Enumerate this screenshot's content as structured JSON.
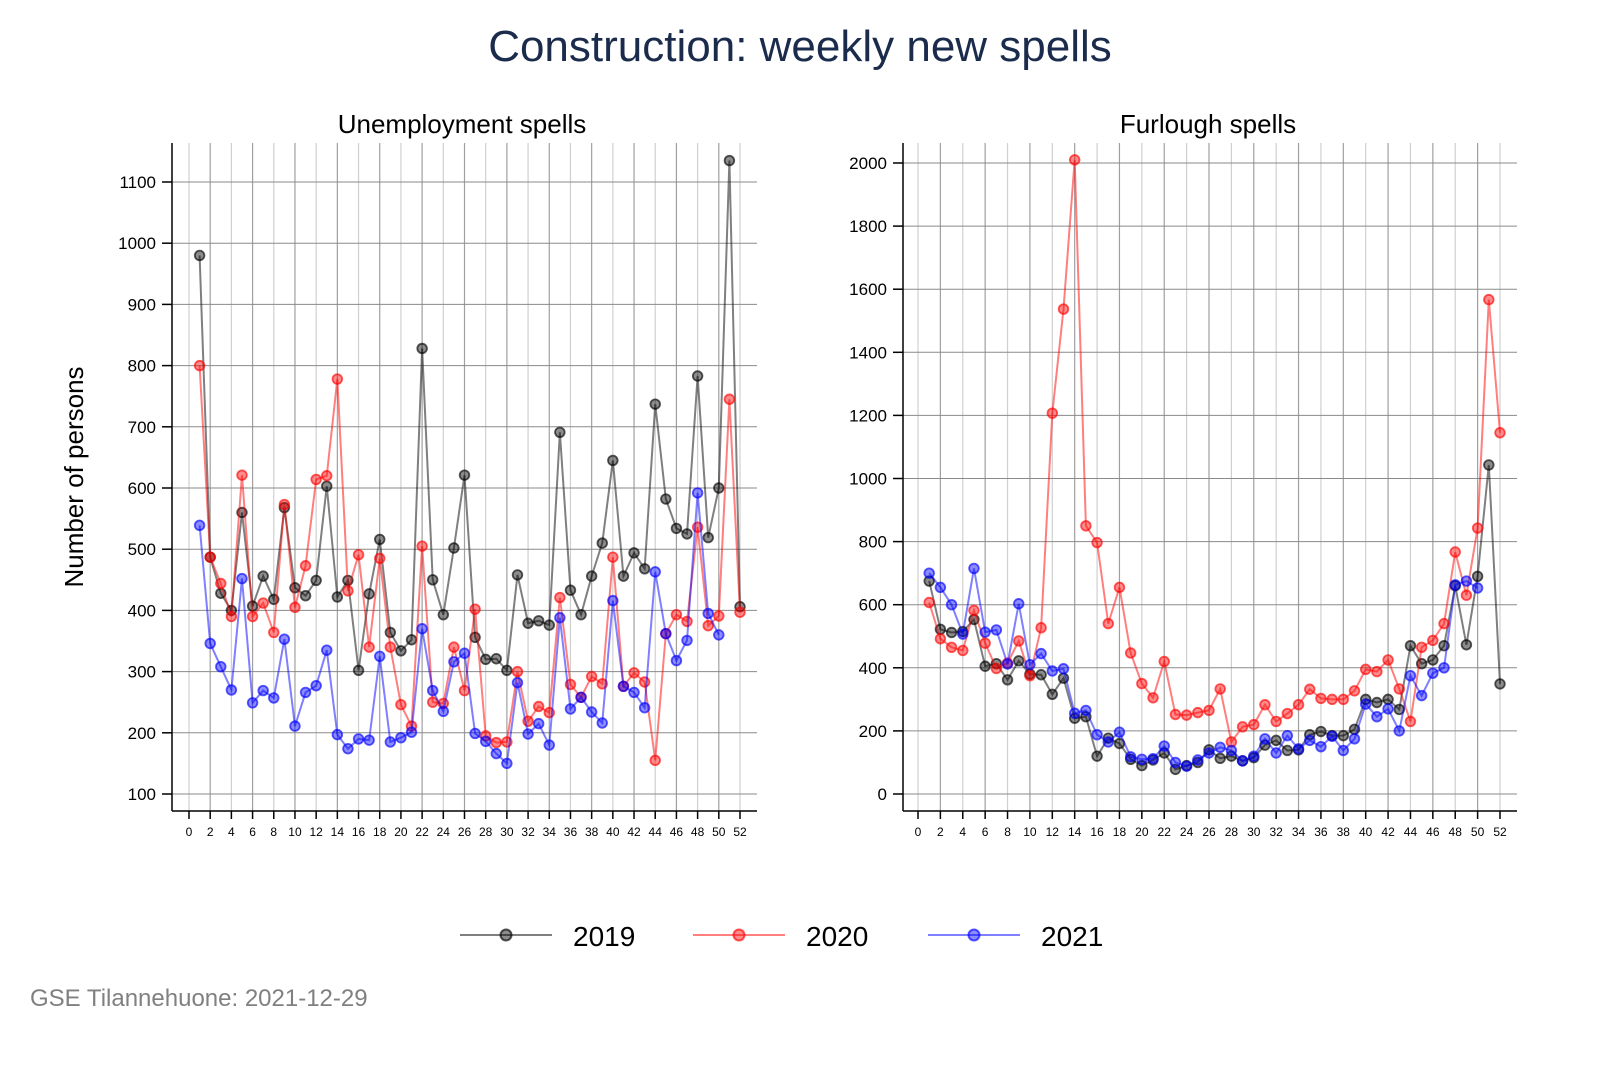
{
  "chart_data": {
    "type": "line",
    "title": "Construction: weekly new spells",
    "source": "GSE Tilannehuone: 2021-12-29",
    "ylabel": "Number of persons",
    "legend": {
      "placement": "bottom",
      "entries": [
        "2019",
        "2020",
        "2021"
      ]
    },
    "colors": {
      "2019": "#000000",
      "2020": "#ff0000",
      "2021": "#0000ff"
    },
    "xticks": [
      0,
      2,
      4,
      6,
      8,
      10,
      12,
      14,
      16,
      18,
      20,
      22,
      24,
      26,
      28,
      30,
      32,
      34,
      36,
      38,
      40,
      42,
      44,
      46,
      48,
      50,
      52
    ],
    "panels": [
      {
        "title": "Unemployment spells",
        "xlim": [
          0,
          52
        ],
        "ylim": [
          100,
          1100
        ],
        "yticks": [
          100,
          200,
          300,
          400,
          500,
          600,
          700,
          800,
          900,
          1000,
          1100
        ],
        "series": [
          {
            "name": "2019",
            "x_start": 1,
            "values": [
              980,
              487,
              428,
              400,
              560,
              407,
              456,
              418,
              568,
              437,
              424,
              449,
              603,
              422,
              449,
              302,
              427,
              516,
              364,
              334,
              352,
              828,
              450,
              393,
              502,
              621,
              356,
              320,
              321,
              302,
              458,
              379,
              383,
              376,
              691,
              433,
              393,
              456,
              510,
              645,
              456,
              494,
              468,
              737,
              582,
              534,
              525,
              783,
              519,
              600,
              1135,
              406
            ]
          },
          {
            "name": "2020",
            "x_start": 1,
            "values": [
              800,
              487,
              444,
              390,
              621,
              390,
              412,
              364,
              573,
              405,
              473,
              614,
              620,
              778,
              432,
              491,
              340,
              485,
              340,
              246,
              211,
              505,
              250,
              248,
              340,
              269,
              402,
              195,
              184,
              185,
              300,
              219,
              243,
              233,
              421,
              279,
              258,
              292,
              280,
              487,
              276,
              298,
              283,
              155,
              362,
              393,
              382,
              536,
              375,
              391,
              745,
              397
            ]
          },
          {
            "name": "2021",
            "x_start": 1,
            "values": [
              539,
              346,
              308,
              270,
              452,
              249,
              269,
              257,
              353,
              211,
              266,
              277,
              335,
              197,
              174,
              190,
              188,
              325,
              185,
              192,
              201,
              370,
              269,
              235,
              316,
              330,
              199,
              186,
              166,
              150,
              282,
              198,
              215,
              180,
              388,
              239,
              258,
              234,
              216,
              416,
              276,
              266,
              241,
              463,
              362,
              318,
              351,
              592,
              395,
              360
            ]
          }
        ]
      },
      {
        "title": "Furlough spells",
        "xlim": [
          0,
          52
        ],
        "ylim": [
          0,
          2000
        ],
        "yticks": [
          0,
          200,
          400,
          600,
          800,
          1000,
          1200,
          1400,
          1600,
          1800,
          2000
        ],
        "series": [
          {
            "name": "2019",
            "x_start": 1,
            "values": [
              675,
              522,
              512,
              515,
              553,
              405,
              413,
              362,
              422,
              380,
              378,
              316,
              367,
              240,
              245,
              120,
              177,
              160,
              110,
              90,
              108,
              130,
              78,
              90,
              100,
              140,
              113,
              120,
              105,
              115,
              155,
              170,
              138,
              140,
              188,
              198,
              185,
              185,
              205,
              300,
              290,
              300,
              268,
              470,
              413,
              425,
              470,
              660,
              473,
              690,
              1043,
              349
            ]
          },
          {
            "name": "2020",
            "x_start": 1,
            "values": [
              607,
              492,
              465,
              455,
              582,
              478,
              398,
              415,
              485,
              375,
              527,
              1207,
              1537,
              2010,
              850,
              797,
              540,
              655,
              447,
              350,
              305,
              420,
              252,
              250,
              258,
              265,
              333,
              165,
              213,
              220,
              283,
              230,
              255,
              283,
              332,
              303,
              300,
              300,
              327,
              395,
              388,
              425,
              333,
              230,
              465,
              487,
              540,
              767,
              630,
              843,
              1567,
              1145
            ]
          },
          {
            "name": "2021",
            "x_start": 1,
            "values": [
              700,
              655,
              600,
              507,
              715,
              513,
              520,
              412,
              603,
              410,
              445,
              390,
              397,
              256,
              265,
              188,
              165,
              196,
              118,
              110,
              112,
              152,
              100,
              88,
              108,
              130,
              148,
              138,
              105,
              120,
              175,
              130,
              185,
              143,
              170,
              150,
              183,
              138,
              175,
              285,
              245,
              270,
              200,
              375,
              312,
              383,
              400,
              663,
              675,
              653
            ]
          }
        ]
      }
    ]
  }
}
